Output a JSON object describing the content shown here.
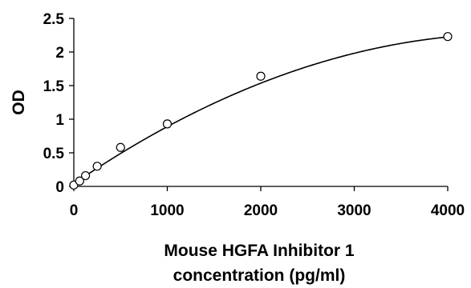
{
  "chart_data": {
    "type": "scatter",
    "title": "",
    "xlabel_lines": [
      "Mouse HGFA Inhibitor 1",
      "concentration (pg/ml)"
    ],
    "ylabel": "OD",
    "xlim": [
      0,
      4000
    ],
    "ylim": [
      0,
      2.5
    ],
    "x_ticks": [
      0,
      1000,
      2000,
      3000,
      4000
    ],
    "x_tick_labels": [
      "0",
      "1000",
      "2000",
      "3000",
      "4000"
    ],
    "y_ticks": [
      0,
      0.5,
      1,
      1.5,
      2,
      2.5
    ],
    "y_tick_labels": [
      "0",
      "0.5",
      "1",
      "1.5",
      "2",
      "2.5"
    ],
    "grid": false,
    "legend": "none",
    "series": [
      {
        "points": [
          {
            "x": 0,
            "y": 0.02
          },
          {
            "x": 62.5,
            "y": 0.08
          },
          {
            "x": 125,
            "y": 0.16
          },
          {
            "x": 250,
            "y": 0.3
          },
          {
            "x": 500,
            "y": 0.58
          },
          {
            "x": 1000,
            "y": 0.93
          },
          {
            "x": 2000,
            "y": 1.64
          },
          {
            "x": 4000,
            "y": 2.23
          }
        ]
      }
    ],
    "fit_curve": {
      "type": "polynomial",
      "coefficients": [
        0.04,
        0.00095,
        -1.01e-07
      ]
    }
  }
}
